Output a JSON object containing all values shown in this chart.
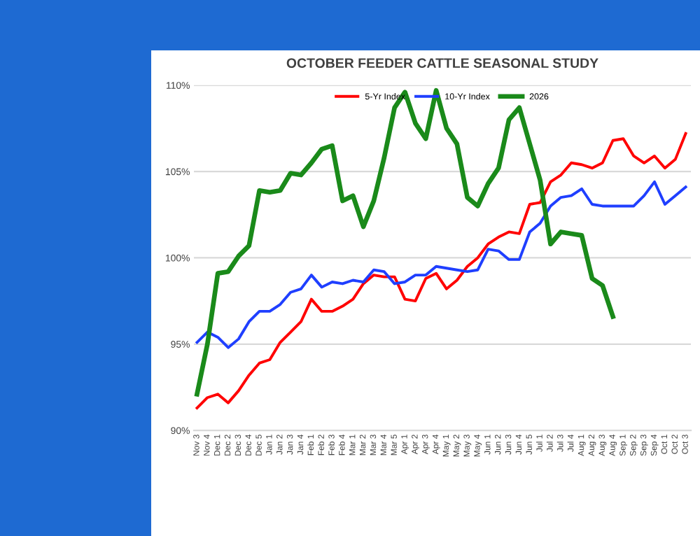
{
  "chart_data": {
    "type": "line",
    "title": "OCTOBER FEEDER CATTLE SEASONAL STUDY",
    "categories": [
      "Nov 3",
      "Nov 4",
      "Dec 1",
      "Dec 2",
      "Dec 3",
      "Dec 4",
      "Dec 5",
      "Jan 1",
      "Jan 2",
      "Jan 3",
      "Jan 4",
      "Feb 1",
      "Feb 2",
      "Feb 3",
      "Feb 4",
      "Mar 1",
      "Mar 2",
      "Mar 3",
      "Mar 4",
      "Mar 5",
      "Apr 1",
      "Apr 2",
      "Apr 3",
      "Apr 4",
      "May 1",
      "May 2",
      "May 3",
      "May 4",
      "Jun 1",
      "Jun 2",
      "Jun 3",
      "Jun 4",
      "Jun 5",
      "Jul 1",
      "Jul 2",
      "Jul 3",
      "Jul 4",
      "Aug 1",
      "Aug 2",
      "Aug 3",
      "Aug 4",
      "Sep 1",
      "Sep 2",
      "Sep 3",
      "Sep 4",
      "Oct 1",
      "Oct 2",
      "Oct 3"
    ],
    "series": [
      {
        "name": "5-Yr Index",
        "color": "#ff0000",
        "values": [
          91.3,
          91.9,
          92.1,
          91.6,
          92.3,
          93.2,
          93.9,
          94.1,
          95.1,
          95.7,
          96.3,
          97.6,
          96.9,
          96.9,
          97.2,
          97.6,
          98.5,
          99.0,
          98.9,
          98.9,
          97.6,
          97.5,
          98.8,
          99.1,
          98.2,
          98.7,
          99.5,
          100.0,
          100.8,
          101.2,
          101.5,
          101.4,
          103.1,
          103.2,
          104.4,
          104.8,
          105.5,
          105.4,
          105.2,
          105.5,
          106.8,
          106.9,
          105.9,
          105.5,
          105.9,
          105.2,
          105.7,
          107.2
        ]
      },
      {
        "name": "10-Yr Index",
        "color": "#1f3fff",
        "values": [
          95.1,
          95.7,
          95.4,
          94.8,
          95.3,
          96.3,
          96.9,
          96.9,
          97.3,
          98.0,
          98.2,
          99.0,
          98.3,
          98.6,
          98.5,
          98.7,
          98.6,
          99.3,
          99.2,
          98.5,
          98.6,
          99.0,
          99.0,
          99.5,
          99.4,
          99.3,
          99.2,
          99.3,
          100.5,
          100.4,
          99.9,
          99.9,
          101.5,
          102.0,
          103.0,
          103.5,
          103.6,
          104.0,
          103.1,
          103.0,
          103.0,
          103.0,
          103.0,
          103.6,
          104.4,
          103.1,
          103.6,
          104.1
        ]
      },
      {
        "name": "2026",
        "color": "#1a8a1a",
        "values": [
          92.1,
          95.0,
          99.1,
          99.2,
          100.1,
          100.7,
          103.9,
          103.8,
          103.9,
          104.9,
          104.8,
          105.5,
          106.3,
          106.5,
          103.3,
          103.6,
          101.8,
          103.3,
          105.8,
          108.7,
          109.6,
          107.8,
          106.9,
          109.7,
          107.5,
          106.6,
          103.5,
          103.0,
          104.3,
          105.2,
          108.0,
          108.7,
          106.6,
          104.5,
          100.8,
          101.5,
          101.4,
          101.3,
          98.8,
          98.4,
          96.6,
          null,
          null,
          null,
          null,
          null,
          null,
          null
        ]
      }
    ],
    "ylim": [
      90,
      110
    ],
    "yticks": [
      {
        "value": 90,
        "label": "90%"
      },
      {
        "value": 95,
        "label": "95%"
      },
      {
        "value": 100,
        "label": "100%"
      },
      {
        "value": 105,
        "label": "105%"
      },
      {
        "value": 110,
        "label": "110%"
      }
    ],
    "grid": "y",
    "legend": "top",
    "marker": "none",
    "line_style": "solid"
  }
}
